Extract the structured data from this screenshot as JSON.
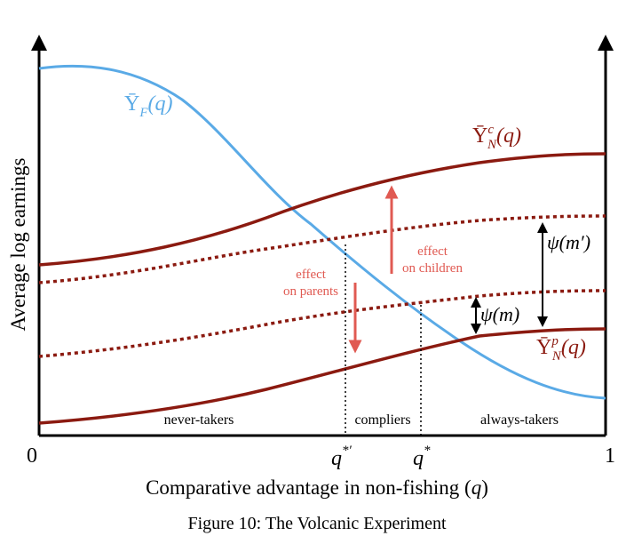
{
  "figure": {
    "caption": "Figure 10: The Volcanic Experiment",
    "x_axis": {
      "label": "Comparative advantage in non-fishing (",
      "label_var": "q",
      "label_close": ")",
      "tick_left": "0",
      "tick_right": "1",
      "marker_q_star_prime": "q",
      "marker_q_star_prime_sup": "*′",
      "marker_q_star": "q",
      "marker_q_star_sup": "*"
    },
    "y_axis": {
      "label": "Average log earnings"
    },
    "curves": {
      "YF": {
        "base": "Ȳ",
        "sub": "F",
        "arg": "(q)",
        "color": "#5aaae6"
      },
      "YNc": {
        "base": "Ȳ",
        "sup": "c",
        "sub": "N",
        "arg": "(q)",
        "color": "#8b1a10"
      },
      "YNp": {
        "base": "Ȳ",
        "sup": "p",
        "sub": "N",
        "arg": "(q)",
        "color": "#8b1a10"
      },
      "dotted_color": "#8b1a10"
    },
    "arrows": {
      "parents": {
        "line1": "effect",
        "line2": "on parents",
        "color": "#e05a52"
      },
      "children": {
        "line1": "effect",
        "line2": "on children",
        "color": "#e05a52"
      }
    },
    "psi": {
      "m_prime": "ψ(m′)",
      "m": "ψ(m)"
    },
    "regions": [
      "never-takers",
      "compliers",
      "always-takers"
    ]
  }
}
